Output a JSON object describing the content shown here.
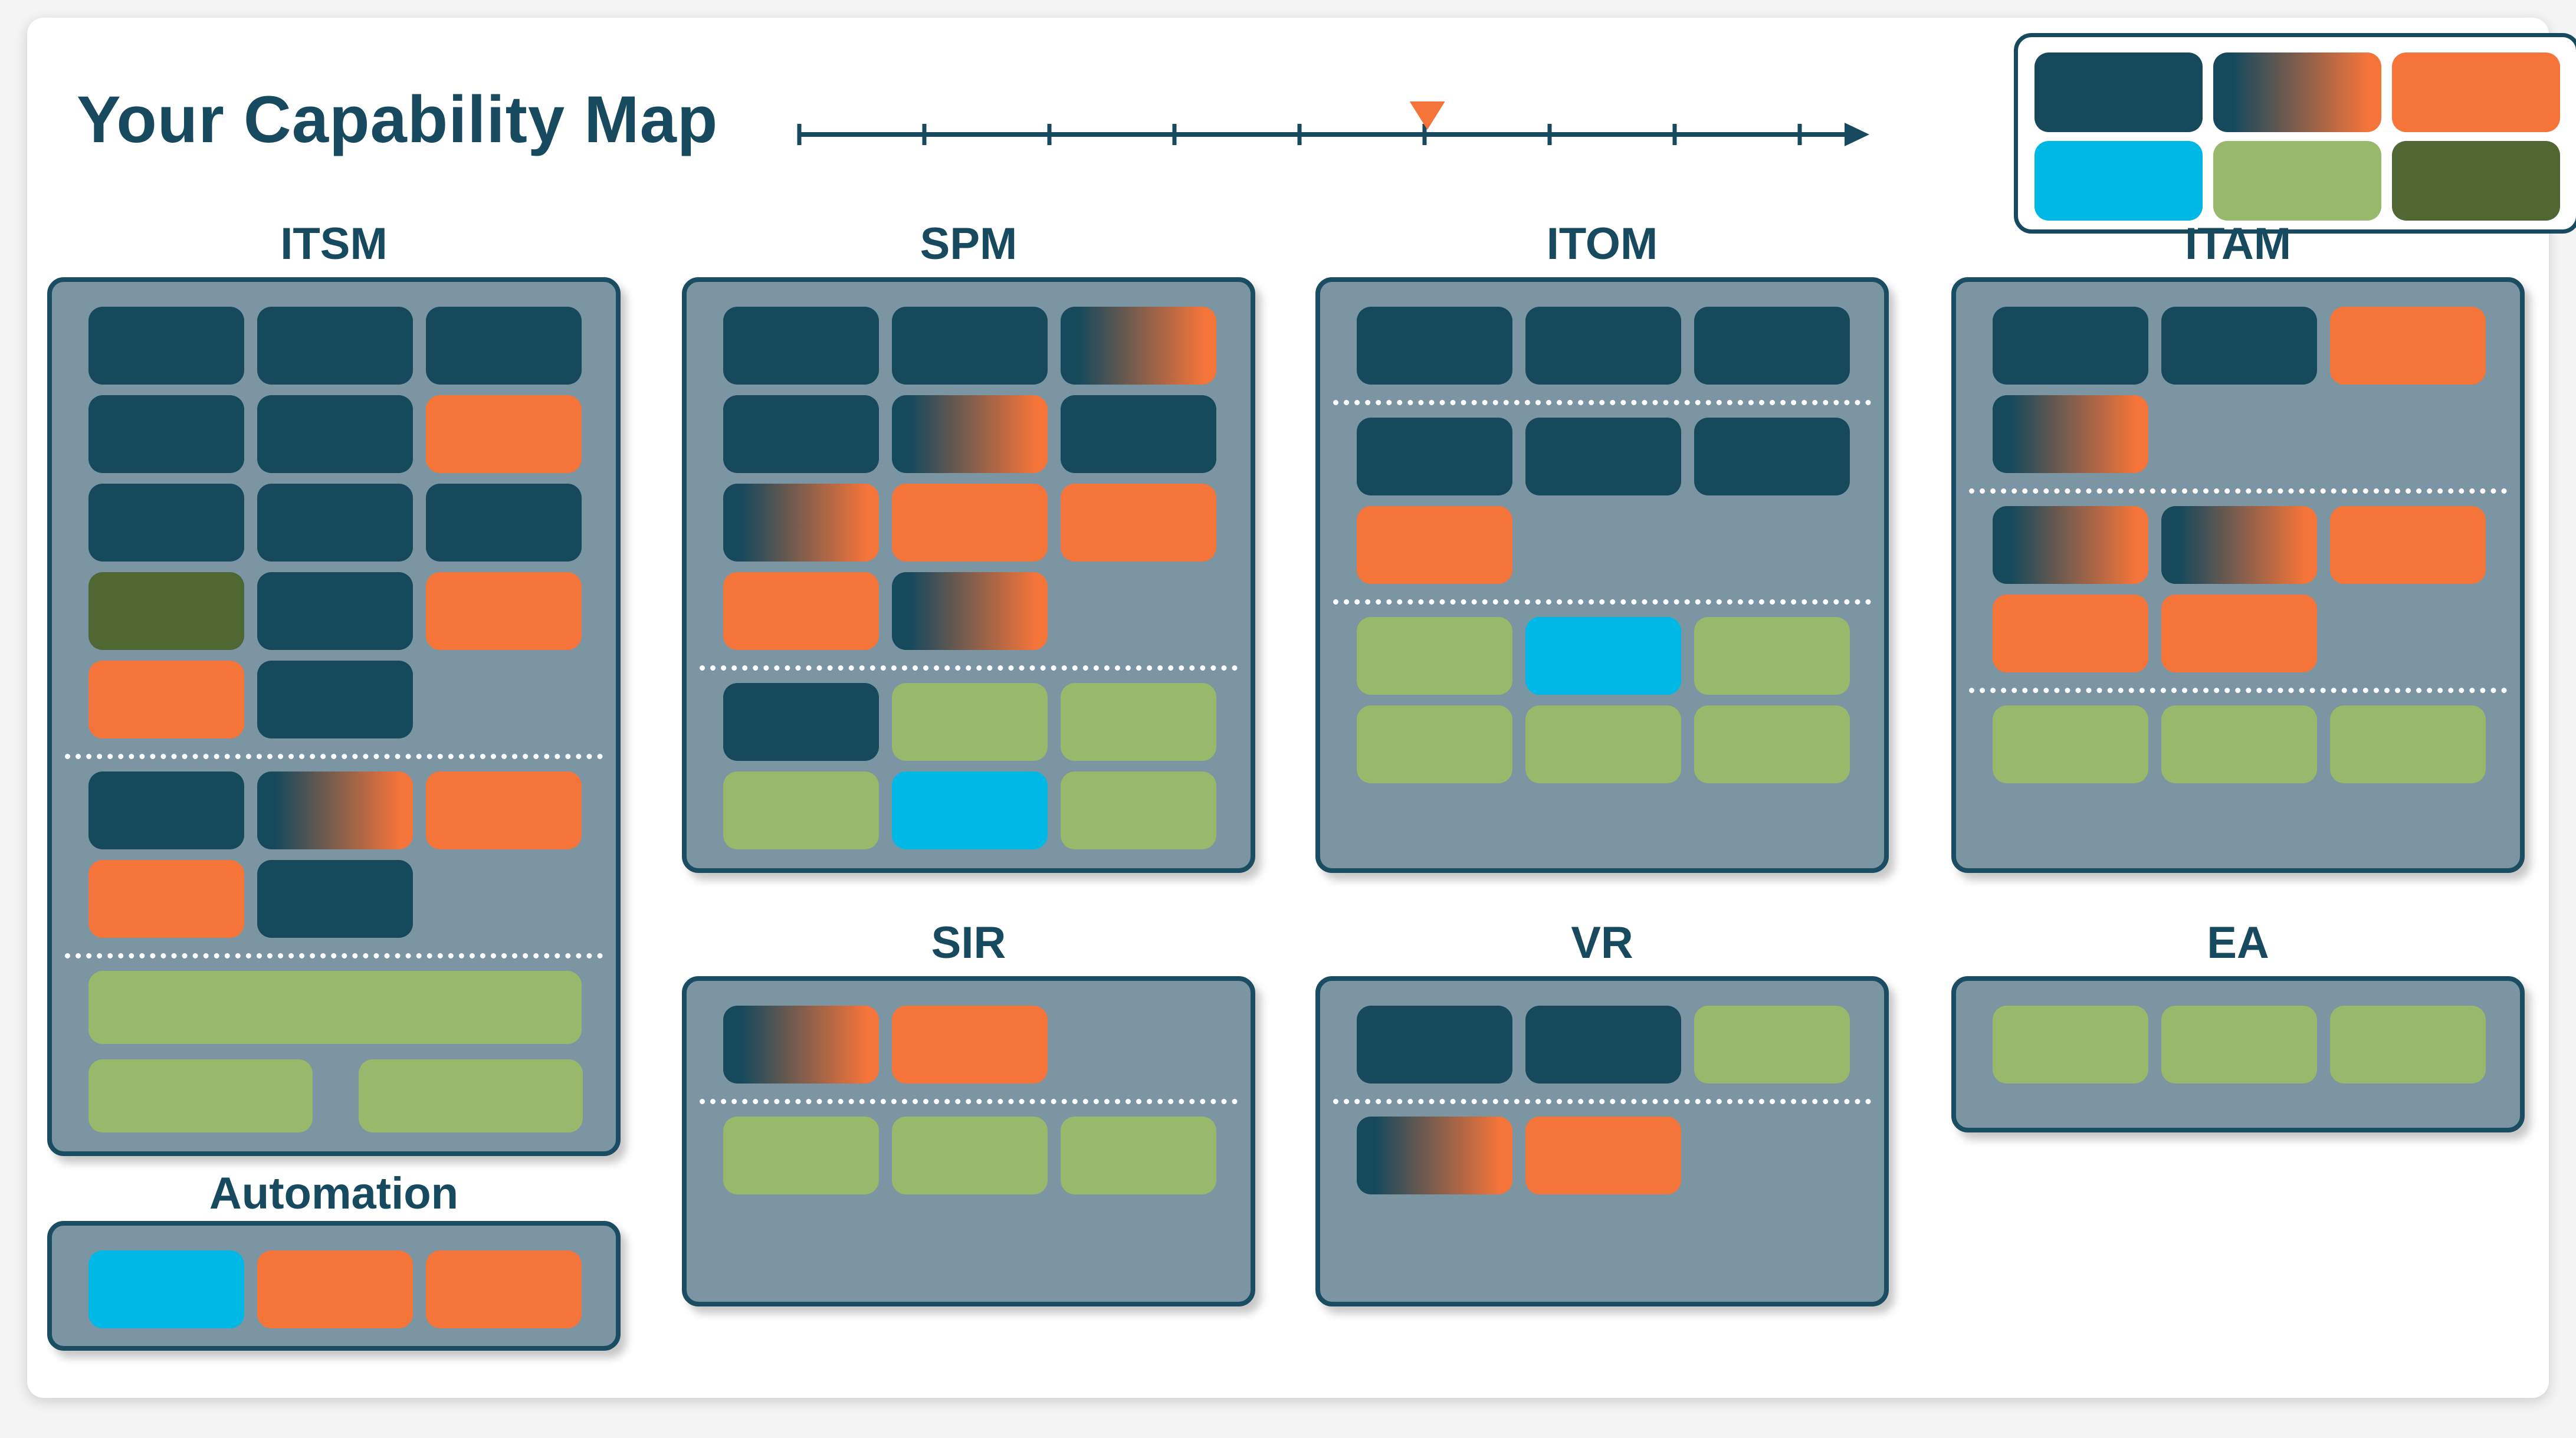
{
  "title": "Your Capability Map",
  "colors": {
    "dark": "#17495d",
    "orange": "#f5743a",
    "cyan": "#00b8e6",
    "light_green": "#98b86c",
    "dark_green": "#4f6733",
    "gradient_from": "#17495d",
    "gradient_to": "#f5743a",
    "panel": "#7b95a3",
    "panel_border": "#1a4d62",
    "title": "#174a5f"
  },
  "timeline": {
    "tick_count": 9,
    "marker_position": 0.59
  },
  "legend": {
    "rows": [
      [
        "dark",
        "gradient",
        "orange"
      ],
      [
        "cyan",
        "light_green",
        "dark_green"
      ]
    ]
  },
  "panels": [
    {
      "id": "itsm",
      "title": "ITSM",
      "sections": [
        [
          [
            "dark",
            "dark",
            "dark"
          ],
          [
            "dark",
            "dark",
            "orange"
          ],
          [
            "dark",
            "dark",
            "dark"
          ],
          [
            "dark_green",
            "dark",
            "orange"
          ],
          [
            "orange",
            "dark"
          ]
        ],
        [
          [
            "dark",
            "gradient",
            "orange"
          ],
          [
            "orange",
            "dark"
          ]
        ],
        [
          [
            "light_green"
          ],
          [
            "light_green",
            "light_green"
          ]
        ]
      ]
    },
    {
      "id": "spm",
      "title": "SPM",
      "sections": [
        [
          [
            "dark",
            "dark",
            "gradient"
          ],
          [
            "dark",
            "gradient",
            "dark"
          ],
          [
            "gradient",
            "orange",
            "orange"
          ],
          [
            "orange",
            "gradient"
          ]
        ],
        [
          [
            "dark",
            "light_green",
            "light_green"
          ],
          [
            "light_green",
            "cyan",
            "light_green"
          ]
        ]
      ]
    },
    {
      "id": "itom",
      "title": "ITOM",
      "sections": [
        [
          [
            "dark",
            "dark",
            "dark"
          ]
        ],
        [
          [
            "dark",
            "dark",
            "dark"
          ],
          [
            "orange"
          ]
        ],
        [
          [
            "light_green",
            "cyan",
            "light_green"
          ],
          [
            "light_green",
            "light_green",
            "light_green"
          ]
        ]
      ]
    },
    {
      "id": "itam",
      "title": "ITAM",
      "sections": [
        [
          [
            "dark",
            "dark",
            "orange"
          ],
          [
            "gradient"
          ]
        ],
        [
          [
            "gradient",
            "gradient",
            "orange"
          ],
          [
            "orange",
            "orange"
          ]
        ],
        [
          [
            "light_green",
            "light_green",
            "light_green"
          ]
        ]
      ]
    },
    {
      "id": "sir",
      "title": "SIR",
      "sections": [
        [
          [
            "gradient",
            "orange"
          ]
        ],
        [
          [
            "light_green",
            "light_green",
            "light_green"
          ]
        ]
      ]
    },
    {
      "id": "vr",
      "title": "VR",
      "sections": [
        [
          [
            "dark",
            "dark",
            "light_green"
          ]
        ],
        [
          [
            "gradient",
            "orange"
          ]
        ]
      ]
    },
    {
      "id": "ea",
      "title": "EA",
      "sections": [
        [
          [
            "light_green",
            "light_green",
            "light_green"
          ]
        ]
      ]
    },
    {
      "id": "automation",
      "title": "Automation",
      "sections": [
        [
          [
            "cyan",
            "orange",
            "orange"
          ]
        ]
      ]
    }
  ]
}
